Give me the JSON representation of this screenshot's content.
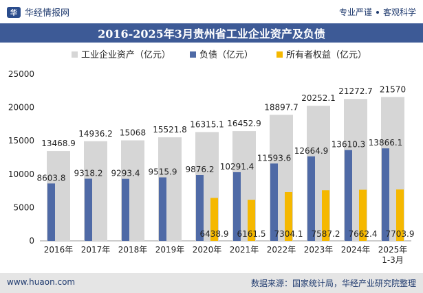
{
  "header": {
    "brand_name": "华经情报网",
    "logo_text": "华",
    "tagline_left": "专业严谨",
    "tagline_right": "客观科学"
  },
  "footer": {
    "website": "www.huaon.com",
    "source": "数据来源：国家统计局，华经产业研究院整理"
  },
  "colors": {
    "assets": "#d6d6d6",
    "liabilities": "#4f6aa6",
    "equity": "#f5b800",
    "title_bg": "#3d5a96"
  },
  "chart_data": {
    "type": "bar",
    "title": "2016-2025年3月贵州省工业企业资产及负债",
    "categories": [
      "2016年",
      "2017年",
      "2018年",
      "2019年",
      "2020年",
      "2021年",
      "2022年",
      "2023年",
      "2024年",
      "2025年\n1-3月"
    ],
    "series": [
      {
        "name": "工业企业资产（亿元）",
        "values": [
          13468.9,
          14936.2,
          15068,
          15521.8,
          16315.1,
          16452.9,
          18897.7,
          20252.1,
          21272.7,
          21570
        ]
      },
      {
        "name": "负债（亿元）",
        "values": [
          8603.8,
          9318.2,
          9293.4,
          9515.9,
          9876.2,
          10291.4,
          11593.6,
          12664.9,
          13610.3,
          13866.1
        ]
      },
      {
        "name": "所有者权益（亿元）",
        "values": [
          null,
          null,
          null,
          null,
          6438.9,
          6161.5,
          7304.1,
          7587.2,
          7662.4,
          7703.9
        ]
      }
    ],
    "ylim": [
      0,
      25000
    ],
    "yticks": [
      0,
      5000,
      10000,
      15000,
      20000,
      25000
    ],
    "grid": false,
    "legend_position": "top"
  }
}
